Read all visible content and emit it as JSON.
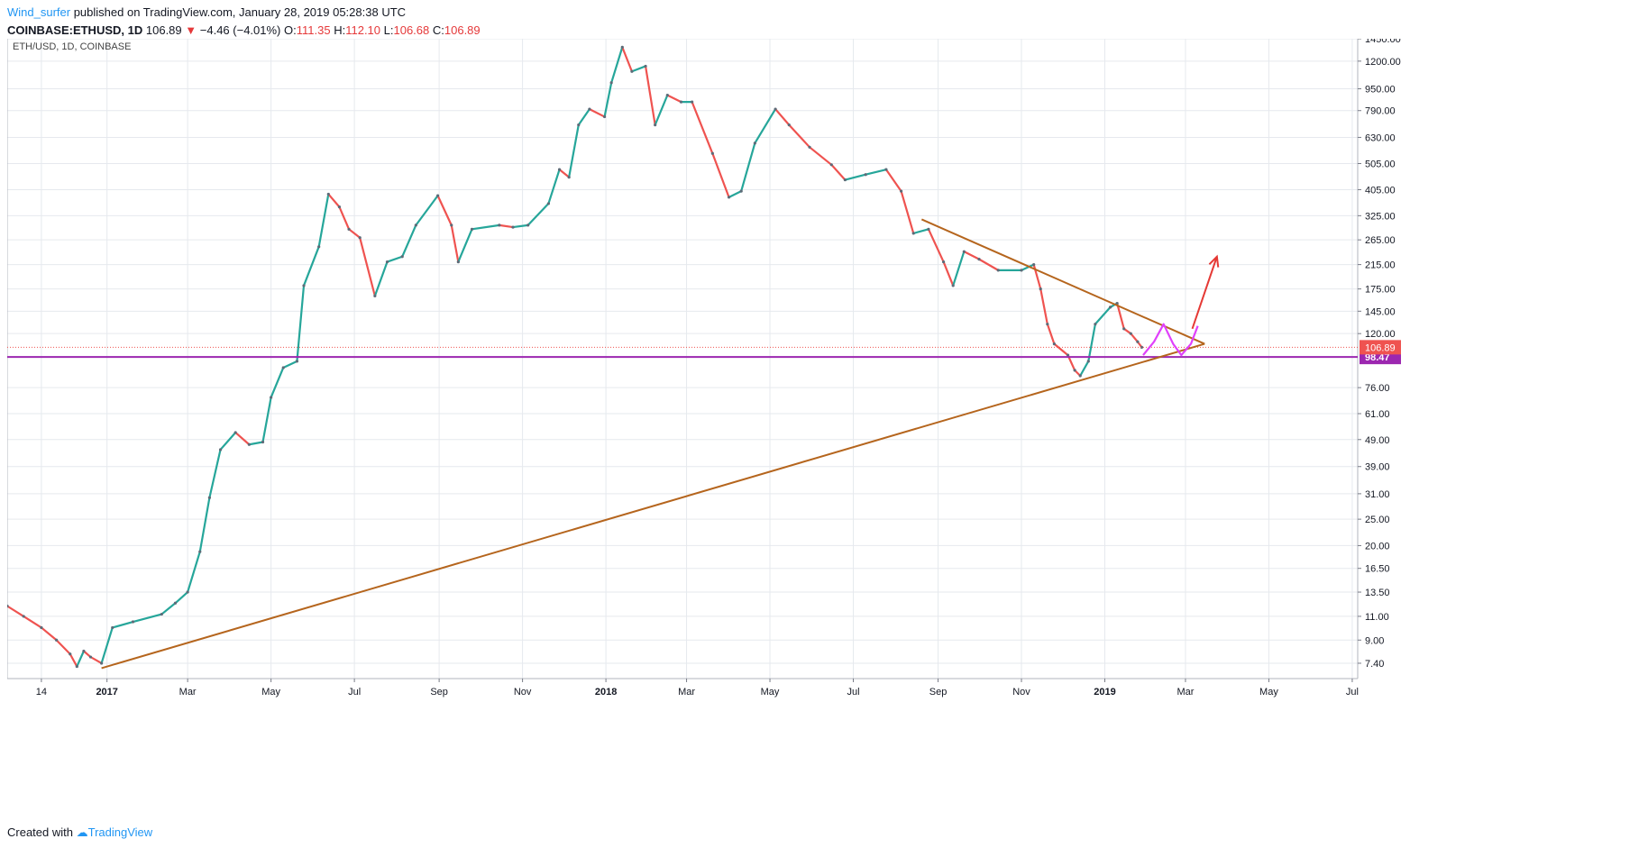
{
  "header": {
    "author": "Wind_surfer",
    "published_text": "published on TradingView.com, January 28, 2019 05:28:38 UTC",
    "symbol": "COINBASE:ETHUSD, 1D",
    "last": "106.89",
    "change": "−4.46 (−4.01%)",
    "o_label": "O:",
    "o_value": "111.35",
    "h_label": "H:",
    "h_value": "112.10",
    "l_label": "L:",
    "l_value": "106.68",
    "c_label": "C:",
    "c_value": "106.89"
  },
  "footer": {
    "created_with": "Created with",
    "brand": "TradingView"
  },
  "chart_data": {
    "type": "line",
    "title": "ETH/USD, 1D, COINBASE",
    "y_scale": "log",
    "ylim": [
      6.5,
      1450
    ],
    "grid": true,
    "y_ticks": [
      "1450.00",
      "1200.00",
      "950.00",
      "790.00",
      "630.00",
      "505.00",
      "405.00",
      "325.00",
      "265.00",
      "215.00",
      "175.00",
      "145.00",
      "120.00",
      "98.47",
      "76.00",
      "61.00",
      "49.00",
      "39.00",
      "31.00",
      "25.00",
      "20.00",
      "16.50",
      "13.50",
      "11.00",
      "9.00",
      "7.40"
    ],
    "y_tick_values": [
      1450,
      1200,
      950,
      790,
      630,
      505,
      405,
      325,
      265,
      215,
      175,
      145,
      120,
      98.47,
      76,
      61,
      49,
      39,
      31,
      25,
      20,
      16.5,
      13.5,
      11,
      9,
      7.4
    ],
    "x_ticks": [
      "14",
      "2017",
      "Mar",
      "May",
      "Jul",
      "Sep",
      "Nov",
      "2018",
      "Mar",
      "May",
      "Jul",
      "Sep",
      "Nov",
      "2019",
      "Mar",
      "May",
      "Jul"
    ],
    "x_tick_dates": [
      "2016-11-14",
      "2017-01-01",
      "2017-03-01",
      "2017-05-01",
      "2017-07-01",
      "2017-09-01",
      "2017-11-01",
      "2018-01-01",
      "2018-03-01",
      "2018-05-01",
      "2018-07-01",
      "2018-09-01",
      "2018-11-01",
      "2019-01-01",
      "2019-03-01",
      "2019-05-01",
      "2019-07-01"
    ],
    "xlim": [
      "2016-10-20",
      "2019-07-05"
    ],
    "series": [
      {
        "points": [
          [
            "2016-10-20",
            12.0
          ],
          [
            "2016-11-01",
            11.0
          ],
          [
            "2016-11-14",
            10.0
          ],
          [
            "2016-11-25",
            9.0
          ],
          [
            "2016-12-05",
            8.0
          ],
          [
            "2016-12-10",
            7.2
          ],
          [
            "2016-12-15",
            8.2
          ],
          [
            "2016-12-20",
            7.8
          ],
          [
            "2016-12-28",
            7.4
          ],
          [
            "2017-01-05",
            10.0
          ],
          [
            "2017-01-20",
            10.5
          ],
          [
            "2017-02-10",
            11.2
          ],
          [
            "2017-02-20",
            12.3
          ],
          [
            "2017-03-01",
            13.5
          ],
          [
            "2017-03-10",
            19.0
          ],
          [
            "2017-03-17",
            30.0
          ],
          [
            "2017-03-25",
            45.0
          ],
          [
            "2017-04-05",
            52.0
          ],
          [
            "2017-04-15",
            47.0
          ],
          [
            "2017-04-25",
            48.0
          ],
          [
            "2017-05-01",
            70.0
          ],
          [
            "2017-05-10",
            90.0
          ],
          [
            "2017-05-20",
            95.0
          ],
          [
            "2017-05-25",
            180.0
          ],
          [
            "2017-06-05",
            250.0
          ],
          [
            "2017-06-12",
            390.0
          ],
          [
            "2017-06-20",
            350.0
          ],
          [
            "2017-06-27",
            290.0
          ],
          [
            "2017-07-05",
            270.0
          ],
          [
            "2017-07-16",
            165.0
          ],
          [
            "2017-07-25",
            220.0
          ],
          [
            "2017-08-05",
            230.0
          ],
          [
            "2017-08-15",
            300.0
          ],
          [
            "2017-08-31",
            385.0
          ],
          [
            "2017-09-10",
            300.0
          ],
          [
            "2017-09-15",
            220.0
          ],
          [
            "2017-09-25",
            290.0
          ],
          [
            "2017-10-15",
            300.0
          ],
          [
            "2017-10-25",
            295.0
          ],
          [
            "2017-11-05",
            300.0
          ],
          [
            "2017-11-20",
            360.0
          ],
          [
            "2017-11-28",
            480.0
          ],
          [
            "2017-12-05",
            450.0
          ],
          [
            "2017-12-12",
            700.0
          ],
          [
            "2017-12-20",
            800.0
          ],
          [
            "2017-12-31",
            750.0
          ],
          [
            "2018-01-05",
            1000.0
          ],
          [
            "2018-01-13",
            1350.0
          ],
          [
            "2018-01-20",
            1100.0
          ],
          [
            "2018-01-30",
            1150.0
          ],
          [
            "2018-02-06",
            700.0
          ],
          [
            "2018-02-15",
            900.0
          ],
          [
            "2018-02-25",
            850.0
          ],
          [
            "2018-03-05",
            850.0
          ],
          [
            "2018-03-20",
            550.0
          ],
          [
            "2018-04-01",
            380.0
          ],
          [
            "2018-04-10",
            400.0
          ],
          [
            "2018-04-20",
            600.0
          ],
          [
            "2018-05-05",
            800.0
          ],
          [
            "2018-05-15",
            700.0
          ],
          [
            "2018-05-30",
            580.0
          ],
          [
            "2018-06-15",
            500.0
          ],
          [
            "2018-06-25",
            440.0
          ],
          [
            "2018-07-10",
            460.0
          ],
          [
            "2018-07-25",
            480.0
          ],
          [
            "2018-08-05",
            400.0
          ],
          [
            "2018-08-14",
            280.0
          ],
          [
            "2018-08-25",
            290.0
          ],
          [
            "2018-09-05",
            220.0
          ],
          [
            "2018-09-12",
            180.0
          ],
          [
            "2018-09-20",
            240.0
          ],
          [
            "2018-10-01",
            225.0
          ],
          [
            "2018-10-15",
            205.0
          ],
          [
            "2018-11-01",
            205.0
          ],
          [
            "2018-11-10",
            215.0
          ],
          [
            "2018-11-15",
            175.0
          ],
          [
            "2018-11-20",
            130.0
          ],
          [
            "2018-11-25",
            110.0
          ],
          [
            "2018-12-05",
            100.0
          ],
          [
            "2018-12-10",
            88.0
          ],
          [
            "2018-12-14",
            84.0
          ],
          [
            "2018-12-20",
            95.0
          ],
          [
            "2018-12-25",
            130.0
          ],
          [
            "2019-01-05",
            150.0
          ],
          [
            "2019-01-10",
            155.0
          ],
          [
            "2019-01-15",
            125.0
          ],
          [
            "2019-01-20",
            120.0
          ],
          [
            "2019-01-25",
            112.0
          ],
          [
            "2019-01-28",
            106.89
          ]
        ]
      }
    ],
    "current_price": "106.89",
    "current_price_value": 106.89,
    "horizontal_level": "98.47",
    "horizontal_level_value": 98.47,
    "trendlines": [
      {
        "from": [
          "2016-12-28",
          7.1
        ],
        "to": [
          "2019-03-15",
          110.0
        ],
        "color": "#b5651d"
      },
      {
        "from": [
          "2018-08-20",
          315.0
        ],
        "to": [
          "2019-03-15",
          110.0
        ],
        "color": "#b5651d"
      }
    ],
    "projection": {
      "path": [
        [
          "2019-01-29",
          100
        ],
        [
          "2019-02-06",
          112
        ],
        [
          "2019-02-13",
          130
        ],
        [
          "2019-02-20",
          110
        ],
        [
          "2019-02-26",
          100
        ],
        [
          "2019-03-05",
          110
        ],
        [
          "2019-03-10",
          128
        ]
      ],
      "arrow": {
        "from": [
          "2019-03-06",
          125
        ],
        "to": [
          "2019-03-24",
          230
        ]
      },
      "colors": {
        "path": "#e040fb",
        "arrow": "#e53935"
      }
    },
    "colors": {
      "up": "#26a69a",
      "down": "#ef5350",
      "level": "#9c27b0",
      "grid": "#e6e9ee",
      "axis": "#787b86"
    }
  }
}
